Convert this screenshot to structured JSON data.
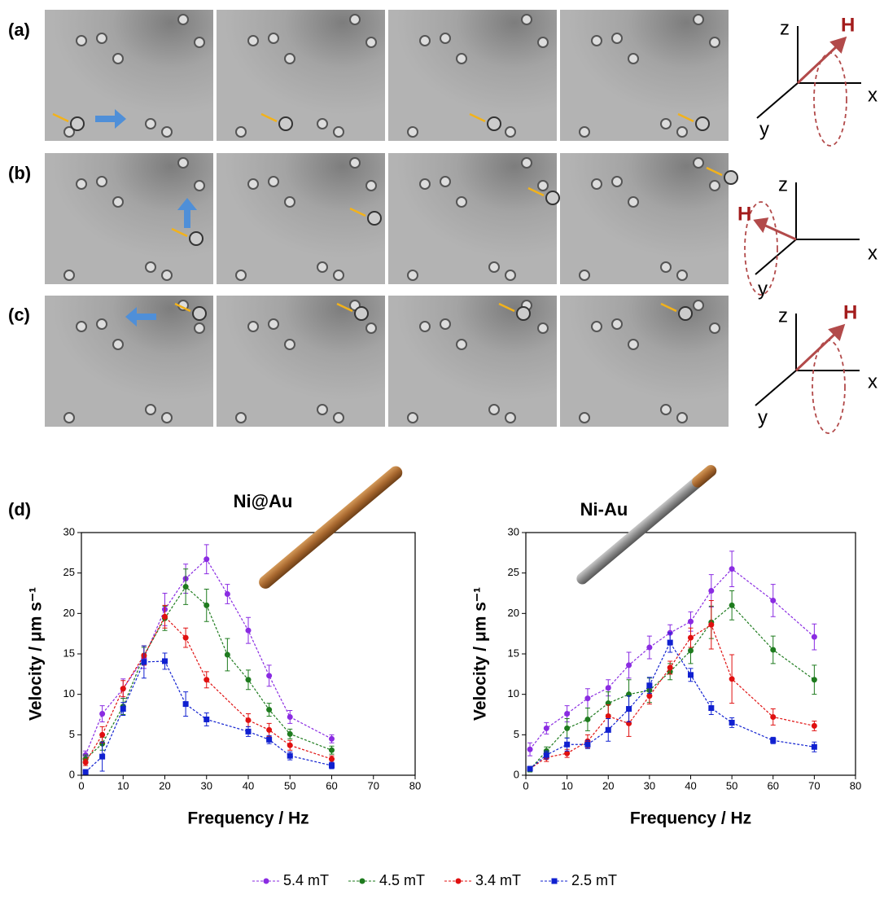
{
  "panel_labels": [
    "(a)",
    "(b)",
    "(c)",
    "(d)"
  ],
  "diagram_labels": [
    {
      "z": "z",
      "h": "H",
      "x": "x",
      "y": "y"
    },
    {
      "z": "z",
      "h": "H",
      "x": "x",
      "y": "y"
    },
    {
      "z": "z",
      "h": "H",
      "x": "x",
      "y": "y"
    }
  ],
  "chart_data": [
    {
      "type": "line",
      "title": "Ni@Au",
      "xlabel": "Frequency / Hz",
      "ylabel": "Velocity / μm s⁻¹",
      "xlim": [
        0,
        80
      ],
      "ylim": [
        0,
        30
      ],
      "xticks": [
        0,
        10,
        20,
        30,
        40,
        50,
        60,
        70,
        80
      ],
      "yticks": [
        0,
        5,
        10,
        15,
        20,
        25,
        30
      ],
      "series": [
        {
          "name": "5.4 mT",
          "color": "#8a2be2",
          "marker": "circle",
          "x": [
            1,
            5,
            10,
            15,
            20,
            25,
            30,
            35,
            40,
            45,
            50,
            60
          ],
          "values": [
            2.5,
            7.6,
            10.7,
            14.5,
            20.5,
            24.3,
            26.7,
            22.4,
            17.9,
            12.3,
            7.2,
            4.5
          ],
          "errors": [
            0.5,
            1.0,
            1.2,
            1.3,
            2.0,
            1.8,
            1.8,
            1.2,
            1.6,
            1.3,
            0.8,
            0.5
          ]
        },
        {
          "name": "4.5 mT",
          "color": "#1e7b1e",
          "marker": "circle",
          "x": [
            1,
            5,
            10,
            15,
            20,
            25,
            30,
            35,
            40,
            45,
            50,
            60
          ],
          "values": [
            2.0,
            3.9,
            8.5,
            14.8,
            19.4,
            23.3,
            21.0,
            14.9,
            11.8,
            8.1,
            5.1,
            3.1
          ],
          "errors": [
            0.5,
            0.8,
            1.0,
            1.0,
            1.5,
            2.2,
            2.0,
            2.0,
            1.2,
            0.8,
            0.6,
            0.5
          ]
        },
        {
          "name": "3.4 mT",
          "color": "#e01010",
          "marker": "circle",
          "x": [
            1,
            5,
            10,
            15,
            20,
            25,
            30,
            40,
            45,
            50,
            60
          ],
          "values": [
            1.6,
            5.0,
            10.7,
            14.8,
            19.6,
            17.0,
            11.8,
            6.8,
            5.6,
            3.7,
            2.0
          ],
          "errors": [
            0.4,
            1.0,
            1.0,
            1.2,
            1.4,
            1.2,
            1.0,
            0.8,
            0.8,
            0.6,
            0.4
          ]
        },
        {
          "name": "2.5 mT",
          "color": "#1020d0",
          "marker": "square",
          "x": [
            1,
            5,
            10,
            15,
            20,
            25,
            30,
            40,
            45,
            50,
            60
          ],
          "values": [
            0.4,
            2.3,
            8.2,
            14.0,
            14.1,
            8.8,
            6.9,
            5.4,
            4.4,
            2.4,
            1.2
          ],
          "errors": [
            0.3,
            1.8,
            0.8,
            2.0,
            1.0,
            1.5,
            0.8,
            0.6,
            0.5,
            0.5,
            0.4
          ]
        }
      ]
    },
    {
      "type": "line",
      "title": "Ni-Au",
      "xlabel": "Frequency / Hz",
      "ylabel": "Velocity / μm s⁻¹",
      "xlim": [
        0,
        80
      ],
      "ylim": [
        0,
        30
      ],
      "xticks": [
        0,
        10,
        20,
        30,
        40,
        50,
        60,
        70,
        80
      ],
      "yticks": [
        0,
        5,
        10,
        15,
        20,
        25,
        30
      ],
      "series": [
        {
          "color": "#8a2be2",
          "marker": "circle",
          "x": [
            1,
            5,
            10,
            15,
            20,
            25,
            30,
            35,
            40,
            45,
            50,
            60,
            70
          ],
          "values": [
            3.2,
            5.8,
            7.6,
            9.5,
            10.8,
            13.6,
            15.8,
            17.6,
            19.0,
            22.8,
            25.5,
            21.6,
            17.1
          ],
          "errors": [
            0.8,
            0.7,
            1.0,
            1.2,
            1.0,
            1.6,
            1.4,
            1.0,
            1.2,
            2.0,
            2.2,
            2.0,
            1.6
          ]
        },
        {
          "color": "#1e7b1e",
          "marker": "circle",
          "x": [
            1,
            5,
            10,
            15,
            20,
            25,
            30,
            35,
            40,
            45,
            50,
            60,
            70
          ],
          "values": [
            0.7,
            3.0,
            5.8,
            6.9,
            8.9,
            10.0,
            10.5,
            12.8,
            15.4,
            18.9,
            21.0,
            15.5,
            11.8
          ],
          "errors": [
            0.3,
            0.5,
            1.2,
            1.4,
            1.4,
            1.8,
            1.5,
            1.0,
            1.6,
            2.0,
            1.8,
            1.7,
            1.8
          ]
        },
        {
          "color": "#e01010",
          "marker": "circle",
          "x": [
            1,
            5,
            10,
            15,
            20,
            25,
            30,
            35,
            40,
            45,
            50,
            60,
            70
          ],
          "values": [
            0.8,
            2.2,
            2.7,
            4.2,
            7.3,
            6.4,
            9.8,
            13.3,
            17.0,
            18.6,
            11.9,
            7.2,
            6.1
          ],
          "errors": [
            0.3,
            0.5,
            0.5,
            0.8,
            1.4,
            1.6,
            1.0,
            0.8,
            1.2,
            3.0,
            3.0,
            1.0,
            0.6
          ]
        },
        {
          "color": "#1020d0",
          "marker": "square",
          "x": [
            1,
            5,
            10,
            15,
            20,
            25,
            30,
            35,
            40,
            45,
            50,
            60,
            70
          ],
          "values": [
            0.8,
            2.5,
            3.8,
            3.8,
            5.6,
            8.2,
            11.1,
            16.4,
            12.4,
            8.3,
            6.5,
            4.3,
            3.5
          ],
          "errors": [
            0.3,
            0.5,
            0.8,
            0.5,
            1.4,
            1.6,
            1.0,
            1.2,
            0.8,
            0.8,
            0.6,
            0.4,
            0.6
          ]
        }
      ]
    }
  ]
}
